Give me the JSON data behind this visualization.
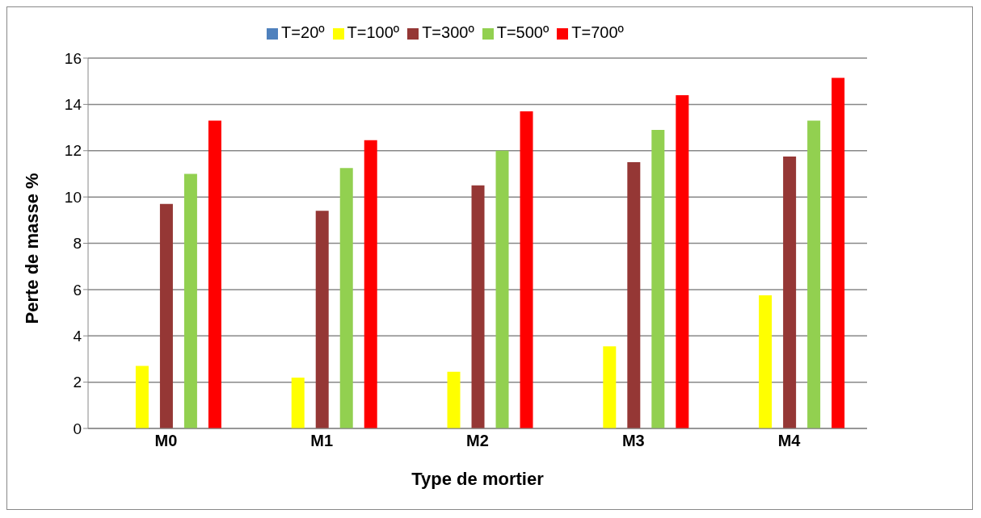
{
  "chart_data": {
    "type": "bar",
    "xlabel": "Type de mortier",
    "ylabel": "Perte de masse %",
    "categories": [
      "M0",
      "M1",
      "M2",
      "M3",
      "M4"
    ],
    "series": [
      {
        "name": "T=20º",
        "color": "#4f81bd",
        "values": [
          0,
          0,
          0,
          0,
          0
        ]
      },
      {
        "name": "T=100º",
        "color": "#ffff00",
        "values": [
          2.7,
          2.2,
          2.45,
          3.55,
          5.75
        ]
      },
      {
        "name": "T=300º",
        "color": "#953735",
        "values": [
          9.7,
          9.4,
          10.5,
          11.5,
          11.75
        ]
      },
      {
        "name": "T=500º",
        "color": "#92d050",
        "values": [
          11,
          11.25,
          12,
          12.9,
          13.3
        ]
      },
      {
        "name": "T=700º",
        "color": "#ff0000",
        "values": [
          13.3,
          12.45,
          13.7,
          14.4,
          15.15
        ]
      }
    ],
    "ylim": [
      0,
      16
    ],
    "yticks": [
      0,
      2,
      4,
      6,
      8,
      10,
      12,
      14,
      16
    ],
    "grid": "y",
    "legend": "top"
  }
}
